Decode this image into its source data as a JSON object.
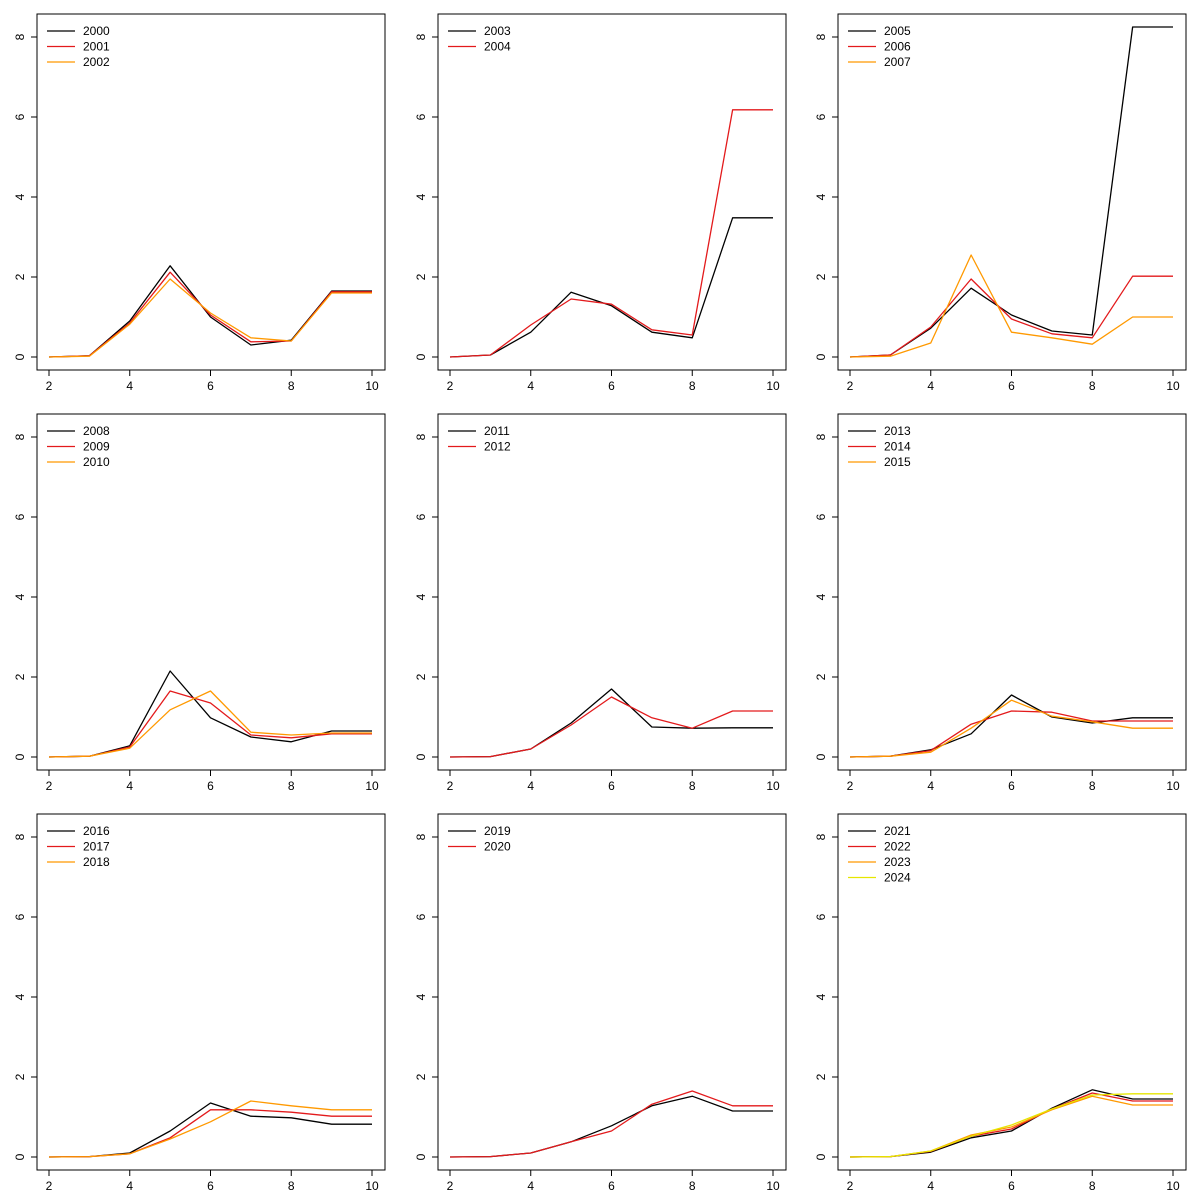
{
  "chart_data": [
    {
      "type": "line",
      "xlim": [
        2,
        10
      ],
      "ylim": [
        0,
        8
      ],
      "x_ticks": [
        "2",
        "4",
        "6",
        "8",
        "10"
      ],
      "y_ticks": [
        "0",
        "2",
        "4",
        "6",
        "8"
      ],
      "legend": "top-left",
      "x": [
        2,
        3,
        4,
        5,
        6,
        7,
        8,
        9,
        10
      ],
      "series": [
        {
          "name": "2000",
          "color": "#000000",
          "values": [
            0,
            0.03,
            0.9,
            2.28,
            1.0,
            0.3,
            0.42,
            1.65,
            1.65
          ]
        },
        {
          "name": "2001",
          "color": "#e31a1c",
          "values": [
            0,
            0.03,
            0.85,
            2.12,
            1.05,
            0.38,
            0.4,
            1.63,
            1.63
          ]
        },
        {
          "name": "2002",
          "color": "#ff9900",
          "values": [
            0,
            0.02,
            0.82,
            1.95,
            1.1,
            0.48,
            0.4,
            1.6,
            1.6
          ]
        }
      ]
    },
    {
      "type": "line",
      "xlim": [
        2,
        10
      ],
      "ylim": [
        0,
        8
      ],
      "x_ticks": [
        "2",
        "4",
        "6",
        "8",
        "10"
      ],
      "y_ticks": [
        "0",
        "2",
        "4",
        "6",
        "8"
      ],
      "legend": "top-left",
      "x": [
        2,
        3,
        4,
        5,
        6,
        7,
        8,
        9,
        10
      ],
      "series": [
        {
          "name": "2003",
          "color": "#000000",
          "values": [
            0,
            0.05,
            0.62,
            1.62,
            1.28,
            0.62,
            0.48,
            3.48,
            3.48
          ]
        },
        {
          "name": "2004",
          "color": "#e31a1c",
          "values": [
            0,
            0.05,
            0.8,
            1.45,
            1.32,
            0.68,
            0.55,
            6.18,
            6.18
          ]
        }
      ]
    },
    {
      "type": "line",
      "xlim": [
        2,
        10
      ],
      "ylim": [
        0,
        8
      ],
      "x_ticks": [
        "2",
        "4",
        "6",
        "8",
        "10"
      ],
      "y_ticks": [
        "0",
        "2",
        "4",
        "6",
        "8"
      ],
      "legend": "top-left",
      "x": [
        2,
        3,
        4,
        5,
        6,
        7,
        8,
        9,
        10
      ],
      "series": [
        {
          "name": "2005",
          "color": "#000000",
          "values": [
            0,
            0.05,
            0.72,
            1.72,
            1.05,
            0.65,
            0.55,
            8.25,
            8.25
          ]
        },
        {
          "name": "2006",
          "color": "#e31a1c",
          "values": [
            0,
            0.05,
            0.75,
            1.95,
            0.95,
            0.58,
            0.48,
            2.02,
            2.02
          ]
        },
        {
          "name": "2007",
          "color": "#ff9900",
          "values": [
            0,
            0.02,
            0.35,
            2.55,
            0.62,
            0.48,
            0.32,
            1.0,
            1.0
          ]
        }
      ]
    },
    {
      "type": "line",
      "xlim": [
        2,
        10
      ],
      "ylim": [
        0,
        8
      ],
      "x_ticks": [
        "2",
        "4",
        "6",
        "8",
        "10"
      ],
      "y_ticks": [
        "0",
        "2",
        "4",
        "6",
        "8"
      ],
      "legend": "top-left",
      "x": [
        2,
        3,
        4,
        5,
        6,
        7,
        8,
        9,
        10
      ],
      "series": [
        {
          "name": "2008",
          "color": "#000000",
          "values": [
            0,
            0.02,
            0.28,
            2.15,
            0.98,
            0.5,
            0.38,
            0.65,
            0.65
          ]
        },
        {
          "name": "2009",
          "color": "#e31a1c",
          "values": [
            0,
            0.02,
            0.25,
            1.65,
            1.35,
            0.55,
            0.48,
            0.58,
            0.58
          ]
        },
        {
          "name": "2010",
          "color": "#ff9900",
          "values": [
            0,
            0.02,
            0.22,
            1.18,
            1.65,
            0.62,
            0.55,
            0.6,
            0.6
          ]
        }
      ]
    },
    {
      "type": "line",
      "xlim": [
        2,
        10
      ],
      "ylim": [
        0,
        8
      ],
      "x_ticks": [
        "2",
        "4",
        "6",
        "8",
        "10"
      ],
      "y_ticks": [
        "0",
        "2",
        "4",
        "6",
        "8"
      ],
      "legend": "top-left",
      "x": [
        2,
        3,
        4,
        5,
        6,
        7,
        8,
        9,
        10
      ],
      "series": [
        {
          "name": "2011",
          "color": "#000000",
          "values": [
            0,
            0.01,
            0.2,
            0.85,
            1.7,
            0.75,
            0.72,
            0.73,
            0.73
          ]
        },
        {
          "name": "2012",
          "color": "#e31a1c",
          "values": [
            0,
            0.01,
            0.2,
            0.8,
            1.5,
            0.98,
            0.72,
            1.15,
            1.15
          ]
        }
      ]
    },
    {
      "type": "line",
      "xlim": [
        2,
        10
      ],
      "ylim": [
        0,
        8
      ],
      "x_ticks": [
        "2",
        "4",
        "6",
        "8",
        "10"
      ],
      "y_ticks": [
        "0",
        "2",
        "4",
        "6",
        "8"
      ],
      "legend": "top-left",
      "x": [
        2,
        3,
        4,
        5,
        6,
        7,
        8,
        9,
        10
      ],
      "series": [
        {
          "name": "2013",
          "color": "#000000",
          "values": [
            0,
            0.02,
            0.18,
            0.58,
            1.55,
            1.0,
            0.85,
            0.98,
            0.98
          ]
        },
        {
          "name": "2014",
          "color": "#e31a1c",
          "values": [
            0,
            0.02,
            0.16,
            0.82,
            1.15,
            1.12,
            0.9,
            0.9,
            0.9
          ]
        },
        {
          "name": "2015",
          "color": "#ff9900",
          "values": [
            0,
            0.02,
            0.12,
            0.72,
            1.42,
            1.02,
            0.88,
            0.72,
            0.72
          ]
        }
      ]
    },
    {
      "type": "line",
      "xlim": [
        2,
        10
      ],
      "ylim": [
        0,
        8
      ],
      "x_ticks": [
        "2",
        "4",
        "6",
        "8",
        "10"
      ],
      "y_ticks": [
        "0",
        "2",
        "4",
        "6",
        "8"
      ],
      "legend": "top-left",
      "x": [
        2,
        3,
        4,
        5,
        6,
        7,
        8,
        9,
        10
      ],
      "series": [
        {
          "name": "2016",
          "color": "#000000",
          "values": [
            0,
            0.01,
            0.1,
            0.65,
            1.35,
            1.02,
            0.98,
            0.82,
            0.82
          ]
        },
        {
          "name": "2017",
          "color": "#e31a1c",
          "values": [
            0,
            0.01,
            0.08,
            0.48,
            1.18,
            1.18,
            1.12,
            1.02,
            1.02
          ]
        },
        {
          "name": "2018",
          "color": "#ff9900",
          "values": [
            0,
            0.01,
            0.08,
            0.45,
            0.88,
            1.4,
            1.28,
            1.18,
            1.18
          ]
        }
      ]
    },
    {
      "type": "line",
      "xlim": [
        2,
        10
      ],
      "ylim": [
        0,
        8
      ],
      "x_ticks": [
        "2",
        "4",
        "6",
        "8",
        "10"
      ],
      "y_ticks": [
        "0",
        "2",
        "4",
        "6",
        "8"
      ],
      "legend": "top-left",
      "x": [
        2,
        3,
        4,
        5,
        6,
        7,
        8,
        9,
        10
      ],
      "series": [
        {
          "name": "2019",
          "color": "#000000",
          "values": [
            0,
            0.01,
            0.1,
            0.38,
            0.78,
            1.28,
            1.52,
            1.15,
            1.15
          ]
        },
        {
          "name": "2020",
          "color": "#e31a1c",
          "values": [
            0,
            0.01,
            0.1,
            0.38,
            0.65,
            1.32,
            1.65,
            1.28,
            1.28
          ]
        }
      ]
    },
    {
      "type": "line",
      "xlim": [
        2,
        10
      ],
      "ylim": [
        0,
        8
      ],
      "x_ticks": [
        "2",
        "4",
        "6",
        "8",
        "10"
      ],
      "y_ticks": [
        "0",
        "2",
        "4",
        "6",
        "8"
      ],
      "legend": "top-left",
      "x": [
        2,
        3,
        4,
        5,
        6,
        7,
        8,
        9,
        10
      ],
      "series": [
        {
          "name": "2021",
          "color": "#000000",
          "values": [
            0,
            0.01,
            0.12,
            0.48,
            0.65,
            1.22,
            1.68,
            1.45,
            1.45
          ]
        },
        {
          "name": "2022",
          "color": "#e31a1c",
          "values": [
            0,
            0.01,
            0.14,
            0.52,
            0.7,
            1.2,
            1.6,
            1.4,
            1.4
          ]
        },
        {
          "name": "2023",
          "color": "#ff9900",
          "values": [
            0,
            0.01,
            0.15,
            0.55,
            0.75,
            1.18,
            1.52,
            1.3,
            1.3
          ]
        },
        {
          "name": "2024",
          "color": "#e6e600",
          "values": [
            0,
            0.01,
            0.15,
            0.52,
            0.8,
            1.2,
            1.55,
            1.58,
            1.58
          ]
        }
      ]
    }
  ]
}
